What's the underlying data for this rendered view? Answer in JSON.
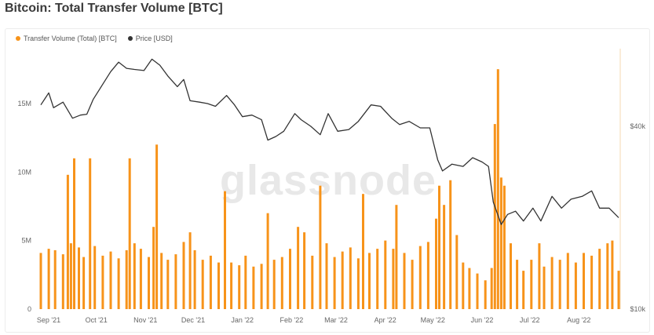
{
  "title": "Bitcoin: Total Transfer Volume [BTC]",
  "watermark": "glassnode",
  "colors": {
    "volume": "#f7931a",
    "price": "#333333",
    "grid": "#eeeeee"
  },
  "chart_data": {
    "type": "bar",
    "legend": [
      {
        "label": "Transfer Volume (Total) [BTC]",
        "color": "#f7931a"
      },
      {
        "label": "Price [USD]",
        "color": "#333333"
      }
    ],
    "legend_position": "top-left",
    "grid": false,
    "x_range": [
      "2021-09-01",
      "2022-08-31"
    ],
    "x_ticks": [
      {
        "label": "Sep '21",
        "date": "2021-09-01"
      },
      {
        "label": "Oct '21",
        "date": "2021-10-01"
      },
      {
        "label": "Nov '21",
        "date": "2021-11-01"
      },
      {
        "label": "Dec '21",
        "date": "2021-12-01"
      },
      {
        "label": "Jan '22",
        "date": "2022-01-01"
      },
      {
        "label": "Feb '22",
        "date": "2022-02-01"
      },
      {
        "label": "Mar '22",
        "date": "2022-03-01"
      },
      {
        "label": "Apr '22",
        "date": "2022-04-01"
      },
      {
        "label": "May '22",
        "date": "2022-05-01"
      },
      {
        "label": "Jun '22",
        "date": "2022-06-01"
      },
      {
        "label": "Jul '22",
        "date": "2022-07-01"
      },
      {
        "label": "Aug '22",
        "date": "2022-08-01"
      }
    ],
    "y_left": {
      "ticks": [
        {
          "label": "0",
          "value": 0
        },
        {
          "label": "5M",
          "value": 5000000
        },
        {
          "label": "10M",
          "value": 10000000
        },
        {
          "label": "15M",
          "value": 15000000
        }
      ],
      "range": [
        0,
        19000000
      ]
    },
    "y_right": {
      "scale": "log",
      "ticks": [
        {
          "label": "$10k",
          "value": 10000
        },
        {
          "label": "$40k",
          "value": 40000
        }
      ],
      "range": [
        10000,
        72000
      ]
    },
    "series": [
      {
        "name": "Transfer Volume (Total) [BTC]",
        "kind": "bar",
        "axis": "left",
        "points": [
          [
            "2021-09-01",
            4.1
          ],
          [
            "2021-09-06",
            4.4
          ],
          [
            "2021-09-10",
            4.3
          ],
          [
            "2021-09-15",
            4.0
          ],
          [
            "2021-09-18",
            9.8
          ],
          [
            "2021-09-20",
            4.8
          ],
          [
            "2021-09-22",
            11.0
          ],
          [
            "2021-09-25",
            4.5
          ],
          [
            "2021-09-28",
            3.8
          ],
          [
            "2021-10-02",
            11.0
          ],
          [
            "2021-10-05",
            4.6
          ],
          [
            "2021-10-10",
            3.9
          ],
          [
            "2021-10-15",
            4.2
          ],
          [
            "2021-10-20",
            3.7
          ],
          [
            "2021-10-25",
            4.3
          ],
          [
            "2021-10-27",
            11.0
          ],
          [
            "2021-10-30",
            4.8
          ],
          [
            "2021-11-03",
            4.4
          ],
          [
            "2021-11-08",
            3.8
          ],
          [
            "2021-11-11",
            6.0
          ],
          [
            "2021-11-13",
            12.0
          ],
          [
            "2021-11-16",
            4.1
          ],
          [
            "2021-11-20",
            3.6
          ],
          [
            "2021-11-25",
            4.0
          ],
          [
            "2021-11-30",
            4.9
          ],
          [
            "2021-12-04",
            5.6
          ],
          [
            "2021-12-07",
            4.3
          ],
          [
            "2021-12-12",
            3.6
          ],
          [
            "2021-12-17",
            3.9
          ],
          [
            "2021-12-22",
            3.4
          ],
          [
            "2021-12-26",
            8.6
          ],
          [
            "2021-12-30",
            3.4
          ],
          [
            "2022-01-04",
            3.2
          ],
          [
            "2022-01-08",
            3.9
          ],
          [
            "2022-01-13",
            3.1
          ],
          [
            "2022-01-18",
            3.3
          ],
          [
            "2022-01-22",
            7.0
          ],
          [
            "2022-01-26",
            3.6
          ],
          [
            "2022-01-31",
            3.8
          ],
          [
            "2022-02-05",
            4.4
          ],
          [
            "2022-02-10",
            6.0
          ],
          [
            "2022-02-14",
            5.6
          ],
          [
            "2022-02-19",
            3.9
          ],
          [
            "2022-02-24",
            9.0
          ],
          [
            "2022-02-28",
            4.8
          ],
          [
            "2022-03-05",
            3.8
          ],
          [
            "2022-03-10",
            4.2
          ],
          [
            "2022-03-15",
            4.5
          ],
          [
            "2022-03-20",
            3.7
          ],
          [
            "2022-03-23",
            8.4
          ],
          [
            "2022-03-27",
            4.1
          ],
          [
            "2022-04-01",
            4.4
          ],
          [
            "2022-04-06",
            5.0
          ],
          [
            "2022-04-11",
            4.4
          ],
          [
            "2022-04-13",
            7.6
          ],
          [
            "2022-04-18",
            4.1
          ],
          [
            "2022-04-23",
            3.6
          ],
          [
            "2022-04-28",
            4.6
          ],
          [
            "2022-05-03",
            4.9
          ],
          [
            "2022-05-08",
            6.6
          ],
          [
            "2022-05-10",
            9.0
          ],
          [
            "2022-05-13",
            7.6
          ],
          [
            "2022-05-17",
            9.4
          ],
          [
            "2022-05-21",
            5.4
          ],
          [
            "2022-05-25",
            3.4
          ],
          [
            "2022-05-29",
            3.0
          ],
          [
            "2022-06-03",
            2.6
          ],
          [
            "2022-06-08",
            2.1
          ],
          [
            "2022-06-12",
            3.0
          ],
          [
            "2022-06-14",
            13.5
          ],
          [
            "2022-06-16",
            17.5
          ],
          [
            "2022-06-18",
            9.6
          ],
          [
            "2022-06-20",
            9.0
          ],
          [
            "2022-06-24",
            4.8
          ],
          [
            "2022-06-28",
            3.6
          ],
          [
            "2022-07-02",
            2.8
          ],
          [
            "2022-07-07",
            3.6
          ],
          [
            "2022-07-12",
            4.8
          ],
          [
            "2022-07-15",
            3.1
          ],
          [
            "2022-07-20",
            3.8
          ],
          [
            "2022-07-25",
            3.6
          ],
          [
            "2022-07-30",
            4.1
          ],
          [
            "2022-08-04",
            3.4
          ],
          [
            "2022-08-09",
            4.1
          ],
          [
            "2022-08-14",
            3.9
          ],
          [
            "2022-08-19",
            4.4
          ],
          [
            "2022-08-24",
            4.8
          ],
          [
            "2022-08-27",
            5.0
          ],
          [
            "2022-08-31",
            2.8
          ]
        ],
        "unit_note": "values in millions BTC"
      },
      {
        "name": "Price [USD]",
        "kind": "line",
        "axis": "right",
        "points": [
          [
            "2021-09-01",
            47000
          ],
          [
            "2021-09-06",
            51500
          ],
          [
            "2021-09-09",
            46000
          ],
          [
            "2021-09-15",
            48000
          ],
          [
            "2021-09-21",
            42500
          ],
          [
            "2021-09-26",
            43500
          ],
          [
            "2021-09-30",
            43800
          ],
          [
            "2021-10-04",
            49000
          ],
          [
            "2021-10-10",
            55000
          ],
          [
            "2021-10-15",
            60500
          ],
          [
            "2021-10-20",
            65000
          ],
          [
            "2021-10-25",
            62000
          ],
          [
            "2021-10-30",
            61500
          ],
          [
            "2021-11-05",
            61000
          ],
          [
            "2021-11-10",
            66500
          ],
          [
            "2021-11-15",
            63500
          ],
          [
            "2021-11-20",
            58500
          ],
          [
            "2021-11-26",
            54000
          ],
          [
            "2021-11-30",
            57000
          ],
          [
            "2021-12-04",
            48500
          ],
          [
            "2021-12-10",
            48000
          ],
          [
            "2021-12-15",
            47500
          ],
          [
            "2021-12-20",
            46500
          ],
          [
            "2021-12-27",
            50500
          ],
          [
            "2022-01-01",
            47000
          ],
          [
            "2022-01-06",
            43000
          ],
          [
            "2022-01-12",
            43500
          ],
          [
            "2022-01-18",
            42000
          ],
          [
            "2022-01-22",
            36000
          ],
          [
            "2022-01-27",
            37000
          ],
          [
            "2022-02-01",
            38500
          ],
          [
            "2022-02-08",
            44000
          ],
          [
            "2022-02-12",
            42000
          ],
          [
            "2022-02-18",
            40000
          ],
          [
            "2022-02-24",
            37500
          ],
          [
            "2022-03-01",
            44000
          ],
          [
            "2022-03-07",
            38500
          ],
          [
            "2022-03-14",
            39000
          ],
          [
            "2022-03-20",
            41500
          ],
          [
            "2022-03-28",
            47000
          ],
          [
            "2022-04-03",
            46500
          ],
          [
            "2022-04-10",
            42500
          ],
          [
            "2022-04-15",
            40500
          ],
          [
            "2022-04-21",
            41500
          ],
          [
            "2022-04-28",
            39500
          ],
          [
            "2022-05-04",
            39500
          ],
          [
            "2022-05-09",
            31000
          ],
          [
            "2022-05-12",
            28500
          ],
          [
            "2022-05-18",
            30000
          ],
          [
            "2022-05-25",
            29500
          ],
          [
            "2022-05-31",
            31500
          ],
          [
            "2022-06-06",
            30500
          ],
          [
            "2022-06-10",
            29500
          ],
          [
            "2022-06-13",
            22500
          ],
          [
            "2022-06-18",
            19000
          ],
          [
            "2022-06-22",
            20500
          ],
          [
            "2022-06-27",
            21000
          ],
          [
            "2022-07-02",
            19500
          ],
          [
            "2022-07-08",
            21500
          ],
          [
            "2022-07-13",
            19500
          ],
          [
            "2022-07-20",
            23500
          ],
          [
            "2022-07-26",
            21500
          ],
          [
            "2022-08-01",
            23000
          ],
          [
            "2022-08-08",
            23500
          ],
          [
            "2022-08-14",
            24500
          ],
          [
            "2022-08-19",
            21500
          ],
          [
            "2022-08-25",
            21500
          ],
          [
            "2022-08-31",
            20000
          ]
        ]
      }
    ]
  }
}
